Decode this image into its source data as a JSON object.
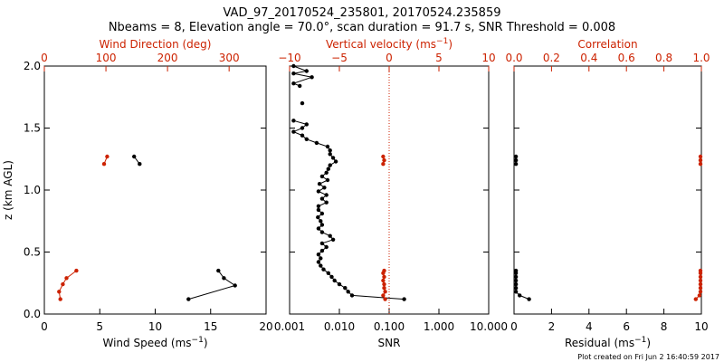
{
  "figure": {
    "title_line1": "VAD_97_20170524_235801, 20170524.235859",
    "title_line2": "Nbeams = 8, Elevation angle = 70.0°, scan duration = 91.7 s, SNR Threshold = 0.008",
    "y_axis_label": "z (km AGL)",
    "footer": "Plot created on Fri Jun  2 16:40:59 2017"
  },
  "chart_data": [
    {
      "type": "scatter",
      "panel": "wind",
      "ylim": [
        0,
        2
      ],
      "yticks": [
        "0.0",
        "0.5",
        "1.0",
        "1.5",
        "2.0"
      ],
      "ylabel": "z (km AGL)",
      "bottom_axis": {
        "label": "Wind Speed (ms",
        "label_sup": "−1",
        "label_end": ")",
        "range": [
          0,
          20
        ],
        "ticks": [
          "0",
          "5",
          "10",
          "15",
          "20"
        ],
        "color": "#000000"
      },
      "top_axis": {
        "label": "Wind Direction (deg)",
        "range": [
          0,
          360
        ],
        "ticks": [
          "0",
          "100",
          "200",
          "300"
        ],
        "tick_values": [
          0,
          100,
          200,
          300
        ],
        "color": "#cc2200"
      },
      "series": [
        {
          "axis": "bottom",
          "color": "#000000",
          "line": true,
          "points": [
            [
              13.0,
              0.12
            ],
            [
              17.2,
              0.23
            ],
            [
              16.2,
              0.29
            ],
            [
              15.7,
              0.35
            ],
            [
              null,
              null
            ],
            [
              8.1,
              1.27
            ],
            [
              8.6,
              1.21
            ]
          ]
        },
        {
          "axis": "top",
          "color": "#cc2200",
          "line": true,
          "points": [
            [
              26,
              0.12
            ],
            [
              24,
              0.18
            ],
            [
              30,
              0.24
            ],
            [
              36,
              0.29
            ],
            [
              52,
              0.35
            ],
            [
              null,
              null
            ],
            [
              102,
              1.27
            ],
            [
              97,
              1.21
            ]
          ]
        }
      ]
    },
    {
      "type": "scatter",
      "panel": "snr",
      "ylim": [
        0,
        2
      ],
      "bottom_axis": {
        "label": "SNR",
        "scale": "log",
        "range": [
          0.001,
          10
        ],
        "ticks": [
          "0.001",
          "0.010",
          "0.100",
          "1.000",
          "10.000"
        ],
        "tick_values": [
          0.001,
          0.01,
          0.1,
          1,
          10
        ],
        "color": "#000000"
      },
      "top_axis": {
        "label": "Vertical velocity (ms",
        "label_sup": "−1",
        "label_end": ")",
        "range": [
          -10,
          10
        ],
        "ticks": [
          "−10",
          "−5",
          "0",
          "5",
          "10"
        ],
        "tick_values": [
          -10,
          -5,
          0,
          5,
          10
        ],
        "color": "#cc2200"
      },
      "reference_line": {
        "axis": "top",
        "value": 0,
        "style": "dotted",
        "color": "#cc2200"
      },
      "series": [
        {
          "axis": "bottom",
          "color": "#000000",
          "line": true,
          "points": [
            [
              0.2,
              0.12
            ],
            [
              0.018,
              0.15
            ],
            [
              0.015,
              0.18
            ],
            [
              0.013,
              0.21
            ],
            [
              0.01,
              0.24
            ],
            [
              0.008,
              0.27
            ],
            [
              0.007,
              0.3
            ],
            [
              0.006,
              0.33
            ],
            [
              0.0048,
              0.36
            ],
            [
              0.0042,
              0.39
            ],
            [
              0.0038,
              0.42
            ],
            [
              0.0042,
              0.45
            ],
            [
              0.0038,
              0.48
            ],
            [
              0.0045,
              0.51
            ],
            [
              0.0055,
              0.54
            ],
            [
              0.0045,
              0.57
            ],
            [
              0.0075,
              0.6
            ],
            [
              0.0065,
              0.63
            ],
            [
              0.0045,
              0.66
            ],
            [
              0.0038,
              0.69
            ],
            [
              0.0045,
              0.72
            ],
            [
              0.0042,
              0.75
            ],
            [
              0.0037,
              0.78
            ],
            [
              0.0045,
              0.81
            ],
            [
              0.0038,
              0.84
            ],
            [
              0.0038,
              0.87
            ],
            [
              0.0055,
              0.9
            ],
            [
              0.0045,
              0.93
            ],
            [
              0.0055,
              0.96
            ],
            [
              0.0038,
              0.99
            ],
            [
              0.005,
              1.02
            ],
            [
              0.004,
              1.05
            ],
            [
              0.0058,
              1.08
            ],
            [
              0.0045,
              1.11
            ],
            [
              0.0055,
              1.14
            ],
            [
              0.006,
              1.17
            ],
            [
              0.0065,
              1.2
            ],
            [
              0.0085,
              1.23
            ],
            [
              0.0075,
              1.26
            ],
            [
              0.0065,
              1.29
            ],
            [
              0.0065,
              1.32
            ],
            [
              0.0058,
              1.35
            ],
            [
              0.0035,
              1.38
            ],
            [
              0.0022,
              1.41
            ],
            [
              0.0018,
              1.44
            ],
            [
              0.0012,
              1.47
            ],
            [
              0.0018,
              1.5
            ],
            [
              0.0022,
              1.53
            ],
            [
              0.0012,
              1.56
            ],
            [
              null,
              null
            ],
            [
              0.0018,
              1.7
            ],
            [
              null,
              null
            ],
            [
              0.0016,
              1.84
            ],
            [
              0.0012,
              1.86
            ],
            [
              0.0028,
              1.91
            ],
            [
              0.0012,
              1.94
            ],
            [
              0.0022,
              1.96
            ],
            [
              0.0012,
              2.0
            ]
          ]
        },
        {
          "axis": "top",
          "color": "#cc2200",
          "line": true,
          "points": [
            [
              -0.4,
              0.12
            ],
            [
              -0.6,
              0.15
            ],
            [
              -0.4,
              0.18
            ],
            [
              -0.5,
              0.21
            ],
            [
              -0.5,
              0.24
            ],
            [
              -0.6,
              0.27
            ],
            [
              -0.5,
              0.3
            ],
            [
              -0.6,
              0.33
            ],
            [
              -0.5,
              0.35
            ],
            [
              null,
              null
            ],
            [
              -0.6,
              1.21
            ],
            [
              -0.5,
              1.24
            ],
            [
              -0.6,
              1.27
            ]
          ]
        }
      ]
    },
    {
      "type": "scatter",
      "panel": "residual",
      "ylim": [
        0,
        2
      ],
      "bottom_axis": {
        "label": "Residual (ms",
        "label_sup": "−1",
        "label_end": ")",
        "range": [
          0,
          10
        ],
        "ticks": [
          "0",
          "2",
          "4",
          "6",
          "8",
          "10"
        ],
        "tick_values": [
          0,
          2,
          4,
          6,
          8,
          10
        ],
        "color": "#000000"
      },
      "top_axis": {
        "label": "Correlation",
        "range": [
          0,
          1
        ],
        "ticks": [
          "0.0",
          "0.2",
          "0.4",
          "0.6",
          "0.8",
          "1.0"
        ],
        "tick_values": [
          0,
          0.2,
          0.4,
          0.6,
          0.8,
          1.0
        ],
        "color": "#cc2200"
      },
      "series": [
        {
          "axis": "bottom",
          "color": "#000000",
          "line": true,
          "points": [
            [
              0.8,
              0.12
            ],
            [
              0.3,
              0.15
            ],
            [
              0.1,
              0.18
            ],
            [
              0.1,
              0.21
            ],
            [
              0.1,
              0.24
            ],
            [
              0.1,
              0.27
            ],
            [
              0.1,
              0.3
            ],
            [
              0.1,
              0.33
            ],
            [
              0.1,
              0.35
            ],
            [
              null,
              null
            ],
            [
              0.1,
              1.21
            ],
            [
              0.1,
              1.24
            ],
            [
              0.1,
              1.27
            ]
          ]
        },
        {
          "axis": "top",
          "color": "#cc2200",
          "line": true,
          "points": [
            [
              0.97,
              0.12
            ],
            [
              0.99,
              0.15
            ],
            [
              0.995,
              0.18
            ],
            [
              0.995,
              0.21
            ],
            [
              0.995,
              0.24
            ],
            [
              0.995,
              0.27
            ],
            [
              0.995,
              0.3
            ],
            [
              0.995,
              0.33
            ],
            [
              0.995,
              0.35
            ],
            [
              null,
              null
            ],
            [
              0.995,
              1.21
            ],
            [
              0.995,
              1.24
            ],
            [
              0.995,
              1.27
            ]
          ]
        }
      ]
    }
  ]
}
